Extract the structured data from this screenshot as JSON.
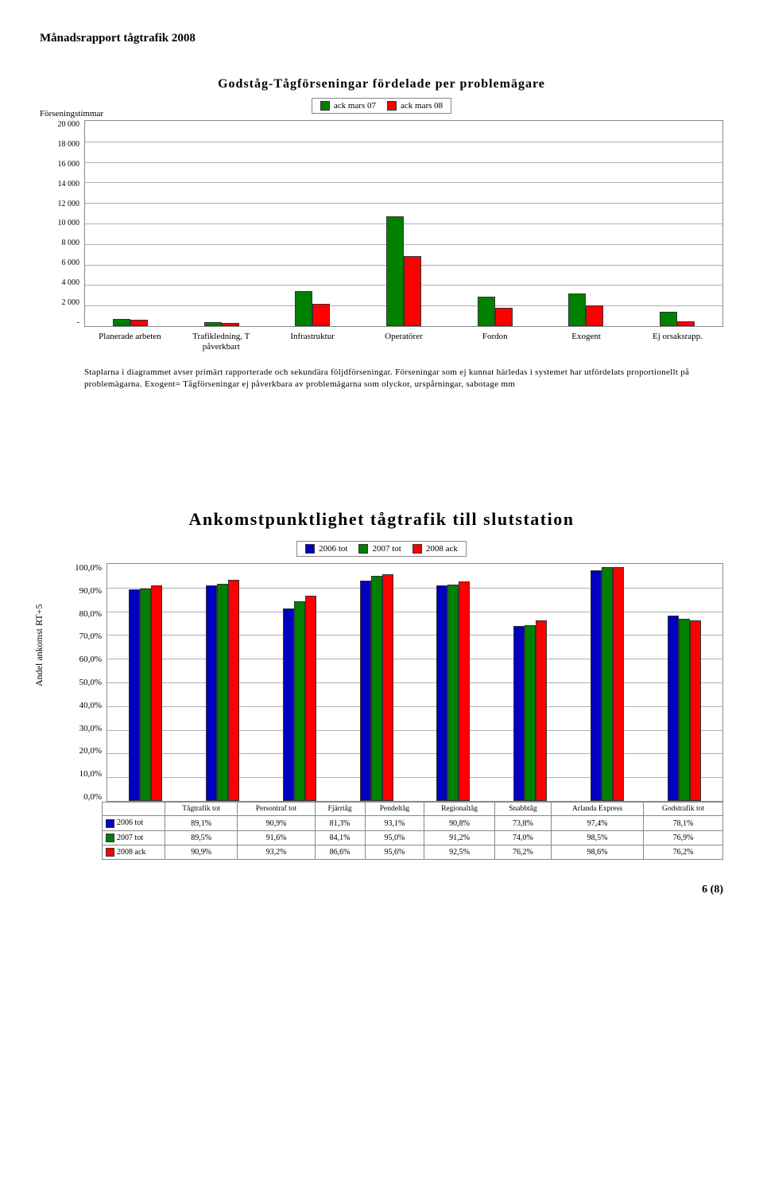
{
  "header": "Månadsrapport tågtrafik 2008",
  "chart1": {
    "type": "bar",
    "y_label": "Förseningstimmar",
    "title": "Godståg-Tågförseningar fördelade per problemägare",
    "legend": [
      {
        "label": "ack mars 07",
        "color": "#008000"
      },
      {
        "label": "ack mars 08",
        "color": "#ff0000"
      }
    ],
    "categories": [
      "Planerade arbeten",
      "Trafikledning, T påverkbart",
      "Infrastruktur",
      "Operatörer",
      "Fordon",
      "Exogent",
      "Ej orsaksrapp."
    ],
    "series": [
      {
        "name": "ack mars 07",
        "color": "#008000",
        "values": [
          700,
          400,
          3400,
          10700,
          2900,
          3200,
          1400
        ]
      },
      {
        "name": "ack mars 08",
        "color": "#ff0000",
        "values": [
          600,
          300,
          2200,
          6800,
          1800,
          2000,
          500
        ]
      }
    ],
    "y_min": 0,
    "y_max": 20000,
    "y_step": 2000,
    "y_ticks": [
      "20 000",
      "18 000",
      "16 000",
      "14 000",
      "12 000",
      "10 000",
      "8 000",
      "6 000",
      "4 000",
      "2 000",
      "-"
    ],
    "background_color": "#ffffff",
    "grid_color": "#b0b0b0",
    "footnote": "Staplarna i diagrammet avser primärt rapporterade och sekundära följdförseningar. Förseningar som ej kunnat härledas i systemet har utfördelats proportionellt på problemägarna. Exogent= Tågförseningar ej påverkbara av problemägarna som olyckor, urspårningar, sabotage mm"
  },
  "chart2": {
    "type": "bar",
    "title": "Ankomstpunktlighet tågtrafik till slutstation",
    "y_label": "Andel ankomst RT+5",
    "legend": [
      {
        "label": "2006 tot",
        "color": "#0000c0"
      },
      {
        "label": "2007 tot",
        "color": "#008000"
      },
      {
        "label": "2008 ack",
        "color": "#ff0000"
      }
    ],
    "categories": [
      "Tågtrafik tot",
      "Persontraf tot",
      "Fjärrtåg",
      "Pendeltåg",
      "Regionaltåg",
      "Snabbtåg",
      "Arlanda Express",
      "Godstrafik tot"
    ],
    "series": [
      {
        "name": "2006 tot",
        "color": "#0000c0",
        "values": [
          89.1,
          90.9,
          81.3,
          93.1,
          90.8,
          73.8,
          97.4,
          78.1
        ]
      },
      {
        "name": "2007 tot",
        "color": "#008000",
        "values": [
          89.5,
          91.6,
          84.1,
          95.0,
          91.2,
          74.0,
          98.5,
          76.9
        ]
      },
      {
        "name": "2008 ack",
        "color": "#ff0000",
        "values": [
          90.9,
          93.2,
          86.6,
          95.6,
          92.5,
          76.2,
          98.6,
          76.2
        ]
      }
    ],
    "y_min": 0,
    "y_max": 100,
    "y_step": 10,
    "y_ticks": [
      "100,0%",
      "90,0%",
      "80,0%",
      "70,0%",
      "60,0%",
      "50,0%",
      "40,0%",
      "30,0%",
      "20,0%",
      "10,0%",
      "0,0%"
    ],
    "table_rows": [
      [
        "89,1%",
        "90,9%",
        "81,3%",
        "93,1%",
        "90,8%",
        "73,8%",
        "97,4%",
        "78,1%"
      ],
      [
        "89,5%",
        "91,6%",
        "84,1%",
        "95,0%",
        "91,2%",
        "74,0%",
        "98,5%",
        "76,9%"
      ],
      [
        "90,9%",
        "93,2%",
        "86,6%",
        "95,6%",
        "92,5%",
        "76,2%",
        "98,6%",
        "76,2%"
      ]
    ]
  },
  "page_num": "6 (8)"
}
